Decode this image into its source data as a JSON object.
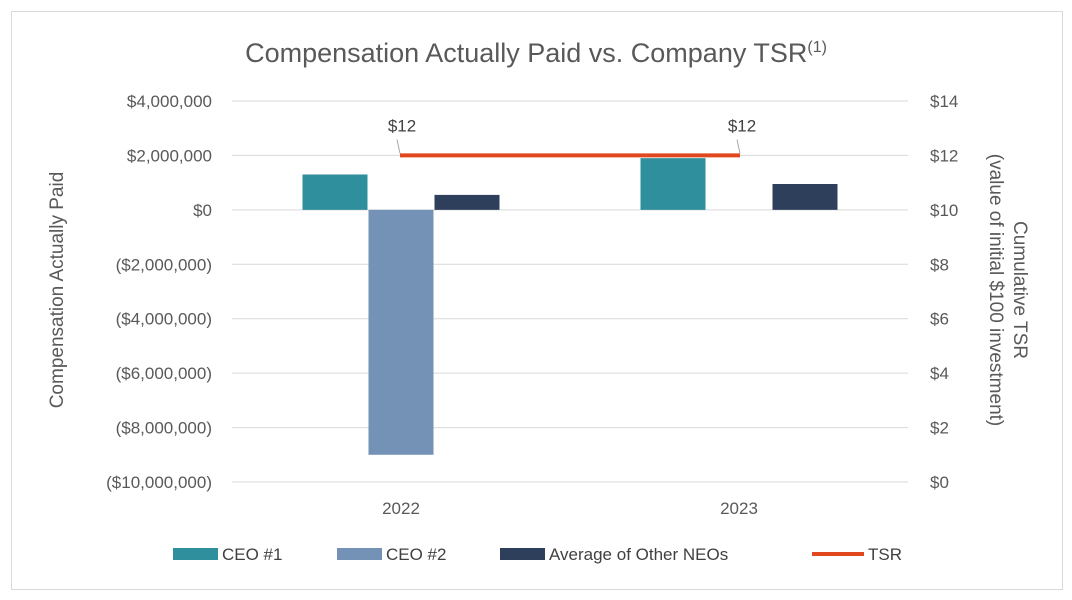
{
  "chart_data": {
    "type": "bar",
    "title": "Compensation Actually Paid vs. Company TSR",
    "title_superscript": "(1)",
    "categories": [
      "2022",
      "2023"
    ],
    "series": [
      {
        "name": "CEO #1",
        "type": "bar",
        "axis": "left",
        "color": "#2f8f9d",
        "values": [
          1300000,
          1900000
        ]
      },
      {
        "name": "CEO #2",
        "type": "bar",
        "axis": "left",
        "color": "#7392b6",
        "values": [
          -9000000,
          null
        ]
      },
      {
        "name": "Average of Other NEOs",
        "type": "bar",
        "axis": "left",
        "color": "#2e3f5c",
        "values": [
          550000,
          950000
        ]
      },
      {
        "name": "TSR",
        "type": "line",
        "axis": "right",
        "color": "#e0491f",
        "values": [
          12,
          12
        ],
        "data_labels": [
          "$12",
          "$12"
        ]
      }
    ],
    "y_left": {
      "label": "Compensation Actually Paid",
      "ylim": [
        -10000000,
        4000000
      ],
      "ticks": [
        4000000,
        2000000,
        0,
        -2000000,
        -4000000,
        -6000000,
        -8000000,
        -10000000
      ],
      "tick_labels": [
        "$4,000,000",
        "$2,000,000",
        "$0",
        "($2,000,000)",
        "($4,000,000)",
        "($6,000,000)",
        "($8,000,000)",
        "($10,000,000)"
      ]
    },
    "y_right": {
      "label_line1": "Cumulative TSR",
      "label_line2": "(value of initial $100 investment)",
      "ylim": [
        0,
        14
      ],
      "ticks": [
        14,
        12,
        10,
        8,
        6,
        4,
        2,
        0
      ],
      "tick_labels": [
        "$14",
        "$12",
        "$10",
        "$8",
        "$6",
        "$4",
        "$2",
        "$0"
      ]
    },
    "grid": true,
    "legend": {
      "position": "bottom",
      "items": [
        "CEO #1",
        "CEO #2",
        "Average of Other NEOs",
        "TSR"
      ]
    }
  }
}
